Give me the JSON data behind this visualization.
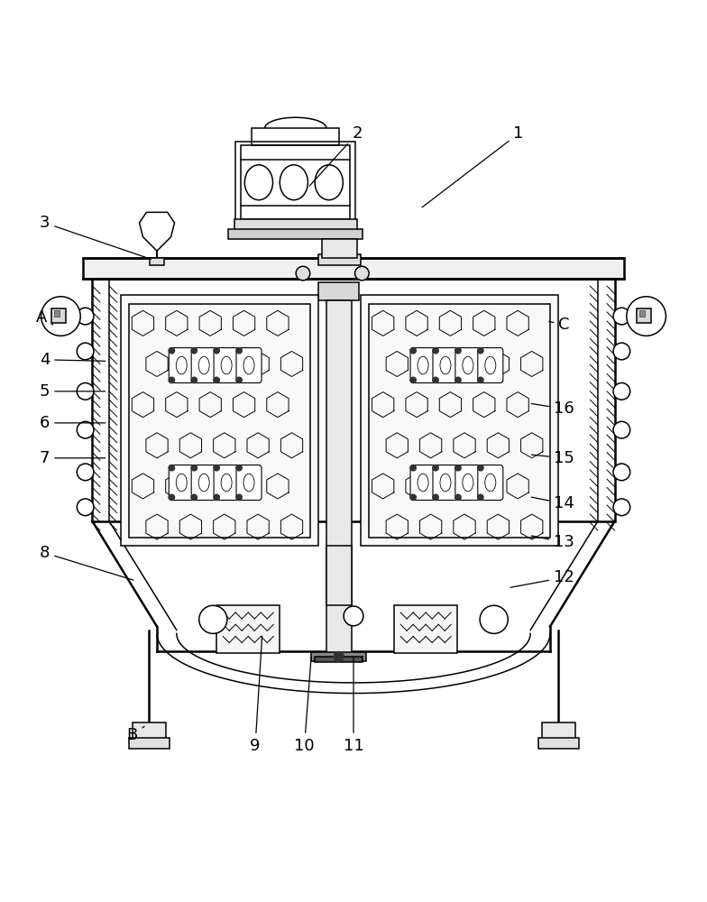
{
  "bg": "#ffffff",
  "lc": "#000000",
  "lw": 1.1,
  "tlw": 1.8,
  "fw": 7.84,
  "fh": 10.0,
  "annotations": [
    [
      "1",
      [
        0.735,
        0.048
      ],
      [
        0.595,
        0.155
      ]
    ],
    [
      "2",
      [
        0.505,
        0.048
      ],
      [
        0.435,
        0.125
      ]
    ],
    [
      "3",
      [
        0.06,
        0.175
      ],
      [
        0.215,
        0.228
      ]
    ],
    [
      "A",
      [
        0.055,
        0.31
      ],
      [
        0.075,
        0.322
      ]
    ],
    [
      "4",
      [
        0.06,
        0.37
      ],
      [
        0.15,
        0.372
      ]
    ],
    [
      "5",
      [
        0.06,
        0.415
      ],
      [
        0.15,
        0.415
      ]
    ],
    [
      "6",
      [
        0.06,
        0.46
      ],
      [
        0.15,
        0.46
      ]
    ],
    [
      "7",
      [
        0.06,
        0.51
      ],
      [
        0.15,
        0.51
      ]
    ],
    [
      "8",
      [
        0.06,
        0.645
      ],
      [
        0.19,
        0.685
      ]
    ],
    [
      "B",
      [
        0.185,
        0.905
      ],
      [
        0.205,
        0.89
      ]
    ],
    [
      "9",
      [
        0.36,
        0.92
      ],
      [
        0.37,
        0.76
      ]
    ],
    [
      "10",
      [
        0.43,
        0.92
      ],
      [
        0.44,
        0.79
      ]
    ],
    [
      "11",
      [
        0.5,
        0.92
      ],
      [
        0.5,
        0.79
      ]
    ],
    [
      "12",
      [
        0.8,
        0.68
      ],
      [
        0.72,
        0.695
      ]
    ],
    [
      "13",
      [
        0.8,
        0.63
      ],
      [
        0.75,
        0.62
      ]
    ],
    [
      "14",
      [
        0.8,
        0.575
      ],
      [
        0.75,
        0.565
      ]
    ],
    [
      "15",
      [
        0.8,
        0.51
      ],
      [
        0.75,
        0.505
      ]
    ],
    [
      "16",
      [
        0.8,
        0.44
      ],
      [
        0.75,
        0.432
      ]
    ],
    [
      "C",
      [
        0.8,
        0.32
      ],
      [
        0.775,
        0.315
      ]
    ]
  ]
}
